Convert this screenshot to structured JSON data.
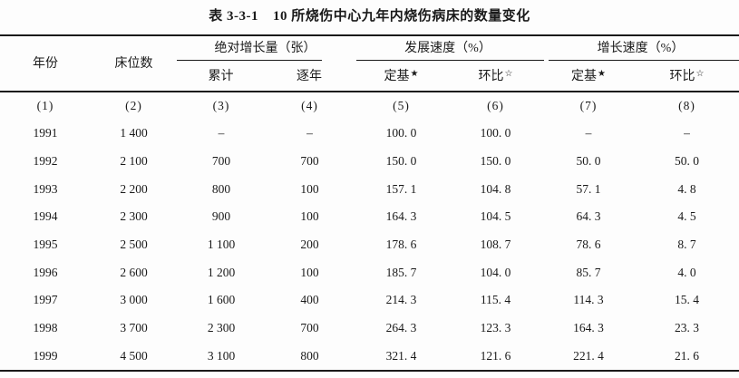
{
  "title": {
    "label": "表 3-3-1",
    "text": "10 所烧伤中心九年内烧伤病床的数量变化"
  },
  "colors": {
    "text": "#1a1a1a",
    "background": "#fdfdfd",
    "rule": "#1a1a1a"
  },
  "table": {
    "headers": {
      "year": "年份",
      "beds": "床位数",
      "groups": [
        {
          "title": "绝对增长量（张）",
          "subs": [
            {
              "text": "累计",
              "sup": ""
            },
            {
              "text": "逐年",
              "sup": ""
            }
          ]
        },
        {
          "title": "发展速度（%）",
          "subs": [
            {
              "text": "定基",
              "sup": "★"
            },
            {
              "text": "环比",
              "sup": "☆"
            }
          ]
        },
        {
          "title": "增长速度（%）",
          "subs": [
            {
              "text": "定基",
              "sup": "★"
            },
            {
              "text": "环比",
              "sup": "☆"
            }
          ]
        }
      ],
      "col_numbers": [
        "(1)",
        "(2)",
        "(3)",
        "(4)",
        "(5)",
        "(6)",
        "(7)",
        "(8)"
      ]
    },
    "rows": [
      [
        "1991",
        "1 400",
        "–",
        "–",
        "100. 0",
        "100. 0",
        "–",
        "–"
      ],
      [
        "1992",
        "2 100",
        "700",
        "700",
        "150. 0",
        "150. 0",
        "50. 0",
        "50. 0"
      ],
      [
        "1993",
        "2 200",
        "800",
        "100",
        "157. 1",
        "104. 8",
        "57. 1",
        "4. 8"
      ],
      [
        "1994",
        "2 300",
        "900",
        "100",
        "164. 3",
        "104. 5",
        "64. 3",
        "4. 5"
      ],
      [
        "1995",
        "2 500",
        "1 100",
        "200",
        "178. 6",
        "108. 7",
        "78. 6",
        "8. 7"
      ],
      [
        "1996",
        "2 600",
        "1 200",
        "100",
        "185. 7",
        "104. 0",
        "85. 7",
        "4. 0"
      ],
      [
        "1997",
        "3 000",
        "1 600",
        "400",
        "214. 3",
        "115. 4",
        "114. 3",
        "15. 4"
      ],
      [
        "1998",
        "3 700",
        "2 300",
        "700",
        "264. 3",
        "123. 3",
        "164. 3",
        "23. 3"
      ],
      [
        "1999",
        "4 500",
        "3 100",
        "800",
        "321. 4",
        "121. 6",
        "221. 4",
        "21. 6"
      ]
    ]
  }
}
